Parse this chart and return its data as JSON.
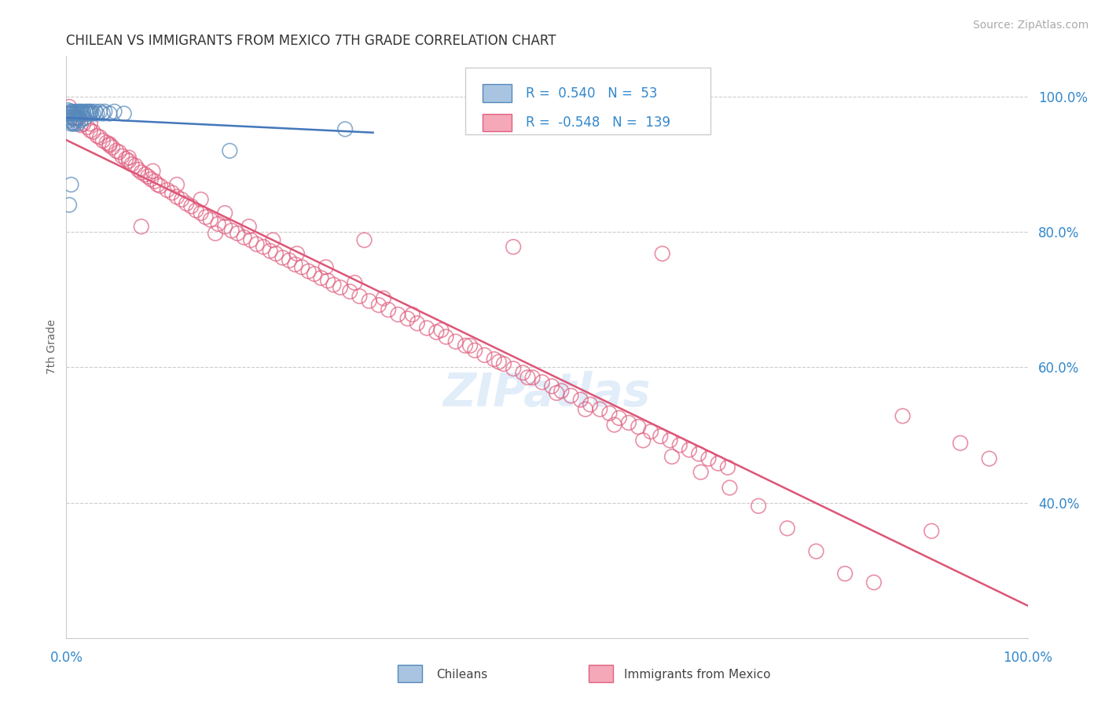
{
  "title": "CHILEAN VS IMMIGRANTS FROM MEXICO 7TH GRADE CORRELATION CHART",
  "source": "Source: ZipAtlas.com",
  "ylabel": "7th Grade",
  "R_blue": 0.54,
  "N_blue": 53,
  "R_pink": -0.548,
  "N_pink": 139,
  "blue_color": "#A8C4E0",
  "pink_color": "#F4A8B8",
  "blue_edge_color": "#5588BB",
  "pink_edge_color": "#E06080",
  "blue_line_color": "#4477BB",
  "pink_line_color": "#DD5577",
  "watermark": "ZIPatlas",
  "blue_scatter_x": [
    0.001,
    0.002,
    0.002,
    0.003,
    0.003,
    0.004,
    0.004,
    0.005,
    0.005,
    0.006,
    0.006,
    0.007,
    0.007,
    0.008,
    0.008,
    0.009,
    0.009,
    0.01,
    0.01,
    0.011,
    0.011,
    0.012,
    0.012,
    0.013,
    0.013,
    0.014,
    0.015,
    0.015,
    0.016,
    0.017,
    0.018,
    0.019,
    0.02,
    0.021,
    0.022,
    0.023,
    0.024,
    0.025,
    0.026,
    0.028,
    0.03,
    0.032,
    0.035,
    0.038,
    0.04,
    0.045,
    0.05,
    0.06,
    0.003,
    0.005,
    0.007,
    0.29,
    0.17
  ],
  "blue_scatter_y": [
    0.975,
    0.98,
    0.97,
    0.975,
    0.965,
    0.978,
    0.968,
    0.975,
    0.96,
    0.978,
    0.97,
    0.975,
    0.962,
    0.978,
    0.968,
    0.975,
    0.96,
    0.975,
    0.965,
    0.978,
    0.968,
    0.975,
    0.96,
    0.978,
    0.968,
    0.975,
    0.978,
    0.965,
    0.975,
    0.978,
    0.975,
    0.968,
    0.978,
    0.975,
    0.978,
    0.975,
    0.978,
    0.975,
    0.978,
    0.975,
    0.978,
    0.975,
    0.978,
    0.975,
    0.978,
    0.975,
    0.978,
    0.975,
    0.84,
    0.87,
    0.96,
    0.952,
    0.92
  ],
  "pink_scatter_x": [
    0.003,
    0.006,
    0.009,
    0.012,
    0.015,
    0.018,
    0.022,
    0.025,
    0.028,
    0.032,
    0.035,
    0.038,
    0.042,
    0.045,
    0.048,
    0.052,
    0.055,
    0.058,
    0.062,
    0.065,
    0.068,
    0.072,
    0.075,
    0.078,
    0.082,
    0.085,
    0.088,
    0.092,
    0.095,
    0.098,
    0.105,
    0.11,
    0.115,
    0.12,
    0.125,
    0.13,
    0.135,
    0.14,
    0.145,
    0.15,
    0.158,
    0.165,
    0.172,
    0.178,
    0.185,
    0.192,
    0.198,
    0.205,
    0.212,
    0.218,
    0.225,
    0.232,
    0.238,
    0.245,
    0.252,
    0.258,
    0.265,
    0.272,
    0.278,
    0.285,
    0.295,
    0.305,
    0.315,
    0.325,
    0.335,
    0.345,
    0.355,
    0.365,
    0.375,
    0.385,
    0.395,
    0.405,
    0.415,
    0.425,
    0.435,
    0.445,
    0.455,
    0.465,
    0.475,
    0.485,
    0.495,
    0.505,
    0.515,
    0.525,
    0.535,
    0.545,
    0.555,
    0.565,
    0.575,
    0.585,
    0.595,
    0.608,
    0.618,
    0.628,
    0.638,
    0.648,
    0.658,
    0.668,
    0.678,
    0.688,
    0.025,
    0.045,
    0.065,
    0.09,
    0.115,
    0.14,
    0.165,
    0.19,
    0.215,
    0.24,
    0.27,
    0.3,
    0.33,
    0.36,
    0.39,
    0.42,
    0.45,
    0.48,
    0.51,
    0.54,
    0.57,
    0.6,
    0.63,
    0.66,
    0.69,
    0.72,
    0.75,
    0.78,
    0.81,
    0.84,
    0.87,
    0.9,
    0.93,
    0.96,
    0.078,
    0.155,
    0.31,
    0.465,
    0.62
  ],
  "pink_scatter_y": [
    0.985,
    0.975,
    0.968,
    0.97,
    0.958,
    0.96,
    0.955,
    0.95,
    0.948,
    0.942,
    0.94,
    0.935,
    0.932,
    0.928,
    0.925,
    0.92,
    0.918,
    0.912,
    0.908,
    0.905,
    0.9,
    0.898,
    0.892,
    0.888,
    0.885,
    0.882,
    0.878,
    0.875,
    0.87,
    0.868,
    0.862,
    0.858,
    0.852,
    0.848,
    0.842,
    0.838,
    0.832,
    0.828,
    0.822,
    0.818,
    0.812,
    0.808,
    0.802,
    0.798,
    0.792,
    0.788,
    0.782,
    0.778,
    0.772,
    0.768,
    0.762,
    0.758,
    0.752,
    0.748,
    0.742,
    0.738,
    0.732,
    0.728,
    0.722,
    0.718,
    0.712,
    0.705,
    0.698,
    0.692,
    0.685,
    0.678,
    0.672,
    0.665,
    0.658,
    0.652,
    0.645,
    0.638,
    0.632,
    0.625,
    0.618,
    0.612,
    0.605,
    0.598,
    0.592,
    0.585,
    0.578,
    0.572,
    0.565,
    0.558,
    0.552,
    0.545,
    0.538,
    0.532,
    0.525,
    0.518,
    0.512,
    0.505,
    0.498,
    0.492,
    0.485,
    0.478,
    0.472,
    0.465,
    0.458,
    0.452,
    0.96,
    0.93,
    0.91,
    0.89,
    0.87,
    0.848,
    0.828,
    0.808,
    0.788,
    0.768,
    0.748,
    0.725,
    0.702,
    0.678,
    0.655,
    0.632,
    0.608,
    0.585,
    0.562,
    0.538,
    0.515,
    0.492,
    0.468,
    0.445,
    0.422,
    0.395,
    0.362,
    0.328,
    0.295,
    0.282,
    0.528,
    0.358,
    0.488,
    0.465,
    0.808,
    0.798,
    0.788,
    0.778,
    0.768
  ]
}
